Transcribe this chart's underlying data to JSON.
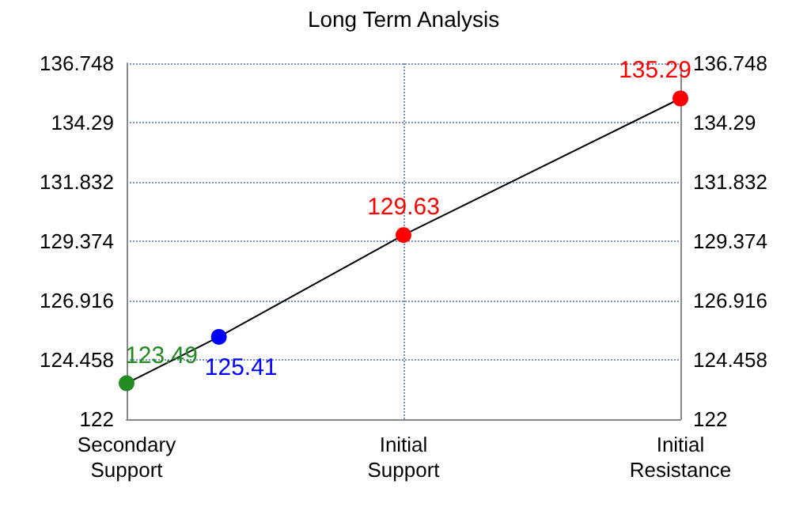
{
  "chart_data": {
    "type": "line",
    "title": "Long Term Analysis",
    "categories": [
      "Secondary\nSupport",
      null,
      null,
      "Initial\nSupport",
      null,
      null,
      "Initial\nResistance"
    ],
    "series": [
      {
        "color": "#000000",
        "colors": [
          "#228b22",
          "#0000ff",
          null,
          "#ff0000",
          null,
          null,
          "#ff0000"
        ],
        "values": [
          123.49,
          125.41,
          null,
          129.63,
          null,
          null,
          135.29
        ]
      }
    ],
    "ylim": [
      122,
      136.748
    ],
    "yticks": [
      122,
      124.458,
      126.916,
      129.374,
      131.832,
      134.29,
      136.748
    ],
    "y2lim": [
      122,
      136.748
    ],
    "y2ticks": [
      122,
      124.458,
      126.916,
      129.374,
      131.832,
      134.29,
      136.748
    ],
    "grid": true,
    "marker": "circle",
    "line_style": "solid",
    "data_labels": true
  }
}
